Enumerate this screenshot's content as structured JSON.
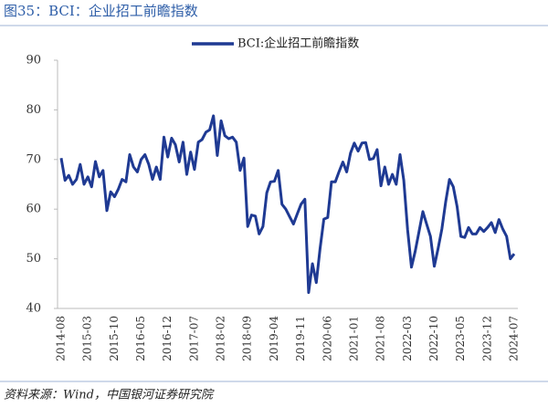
{
  "chart_data": {
    "type": "line",
    "title": "图35：BCI：企业招工前瞻指数",
    "source": "资料来源：Wind，中国银河证券研究院",
    "categories": [
      "2014-08",
      null,
      null,
      null,
      null,
      null,
      null,
      "2015-03",
      null,
      null,
      null,
      null,
      null,
      null,
      "2015-10",
      null,
      null,
      null,
      null,
      null,
      null,
      "2016-05",
      null,
      null,
      null,
      null,
      null,
      null,
      "2016-12",
      null,
      null,
      null,
      null,
      null,
      null,
      "2017-07",
      null,
      null,
      null,
      null,
      null,
      null,
      "2018-02",
      null,
      null,
      null,
      null,
      null,
      null,
      "2018-09",
      null,
      null,
      null,
      null,
      null,
      null,
      "2019-04",
      null,
      null,
      null,
      null,
      null,
      null,
      "2019-11",
      null,
      null,
      null,
      null,
      null,
      null,
      "2020-06",
      null,
      null,
      null,
      null,
      null,
      null,
      "2021-01",
      null,
      null,
      null,
      null,
      null,
      null,
      "2021-08",
      null,
      null,
      null,
      null,
      null,
      null,
      "2022-03",
      null,
      null,
      null,
      null,
      null,
      null,
      "2022-10",
      null,
      null,
      null,
      null,
      null,
      null,
      "2023-05",
      null,
      null,
      null,
      null,
      null,
      null,
      "2023-12",
      null,
      null,
      null,
      null,
      null,
      null,
      "2024-07"
    ],
    "series": [
      {
        "name": "BCI:企业招工前瞻指数",
        "color": "#1f3a93",
        "values": [
          70.3,
          65.8,
          66.8,
          65,
          66,
          69,
          65,
          66.5,
          64.5,
          69.6,
          66.5,
          67.8,
          59.7,
          63.5,
          62.5,
          64,
          66,
          65.5,
          71,
          68.5,
          67.5,
          70,
          71,
          69,
          66,
          68.5,
          66,
          74.5,
          70.5,
          74.3,
          73,
          69.5,
          73.5,
          67,
          71.5,
          68,
          73.5,
          74,
          75.5,
          76,
          78.8,
          70.8,
          77.8,
          74.8,
          74.2,
          74.5,
          73.5,
          67.8,
          70.3,
          56.5,
          58.8,
          58.6,
          55,
          56.5,
          63.3,
          65.5,
          65.6,
          67.8,
          61,
          60,
          58.5,
          57,
          59,
          61,
          62,
          43.2,
          49,
          45.2,
          52,
          58,
          58.3,
          65.5,
          65.5,
          67.6,
          69.5,
          67.5,
          71.3,
          73.3,
          71.7,
          73.3,
          73.4,
          70,
          70.2,
          72,
          64.7,
          68.5,
          65,
          67,
          65,
          71,
          65.8,
          55.8,
          48.3,
          51.5,
          55.5,
          59.5,
          57,
          54.5,
          48.5,
          52,
          56,
          61.5,
          66,
          64.5,
          60.5,
          54.5,
          54.3,
          56.3,
          55,
          55,
          56.3,
          55.5,
          56.3,
          57.3,
          55.3,
          57.9,
          56,
          54.5,
          50,
          51
        ]
      }
    ],
    "ylim": [
      40,
      90
    ],
    "yticks": [
      40,
      50,
      60,
      70,
      80,
      90
    ],
    "legend": "top"
  }
}
